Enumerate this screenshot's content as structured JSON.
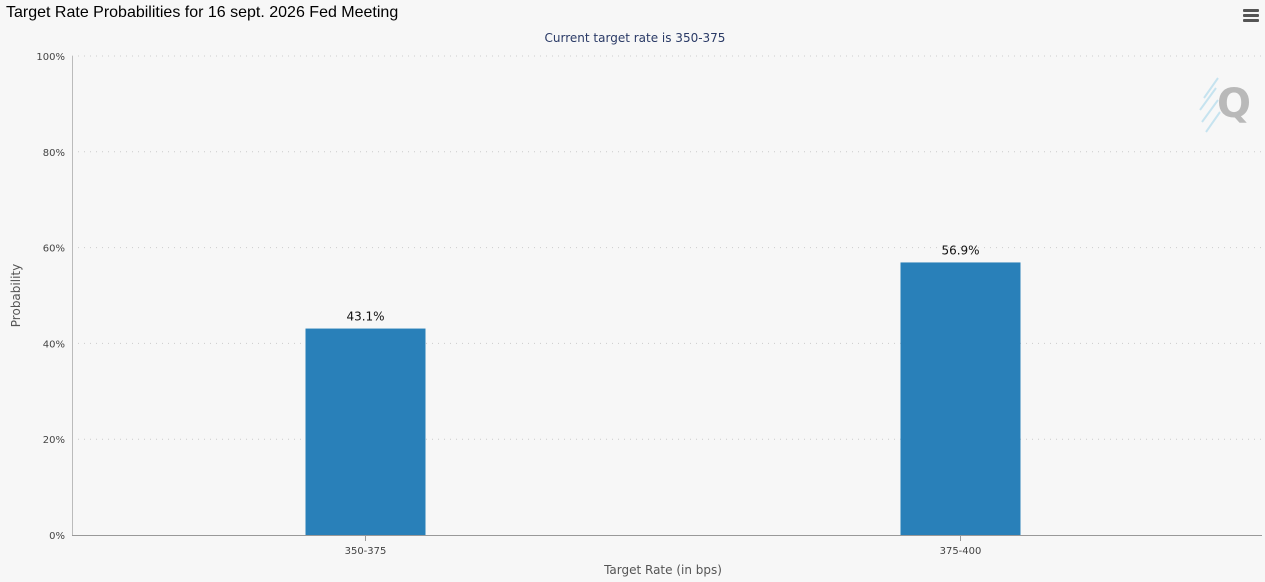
{
  "header": {
    "title": "Target Rate Probabilities for 16 sept. 2026 Fed Meeting",
    "menu_icon": "hamburger-menu-icon"
  },
  "watermark": {
    "text": "Q"
  },
  "colors": {
    "bar": "#2980b9",
    "background": "#f7f7f7",
    "gridline": "#cccccc",
    "subtitle": "#2a3a66"
  },
  "chart_data": {
    "type": "bar",
    "title": "Target Rate Probabilities for 16 sept. 2026 Fed Meeting",
    "subtitle": "Current target rate is 350-375",
    "categories": [
      "350-375",
      "375-400"
    ],
    "values": [
      43.1,
      56.9
    ],
    "data_labels": [
      "43.1%",
      "56.9%"
    ],
    "xlabel": "Target Rate (in bps)",
    "ylabel": "Probability",
    "ylim": [
      0,
      100
    ],
    "yticks": [
      0,
      20,
      40,
      60,
      80,
      100
    ],
    "ytick_labels": [
      "0%",
      "20%",
      "40%",
      "60%",
      "80%",
      "100%"
    ],
    "grid": true,
    "legend": "none"
  }
}
